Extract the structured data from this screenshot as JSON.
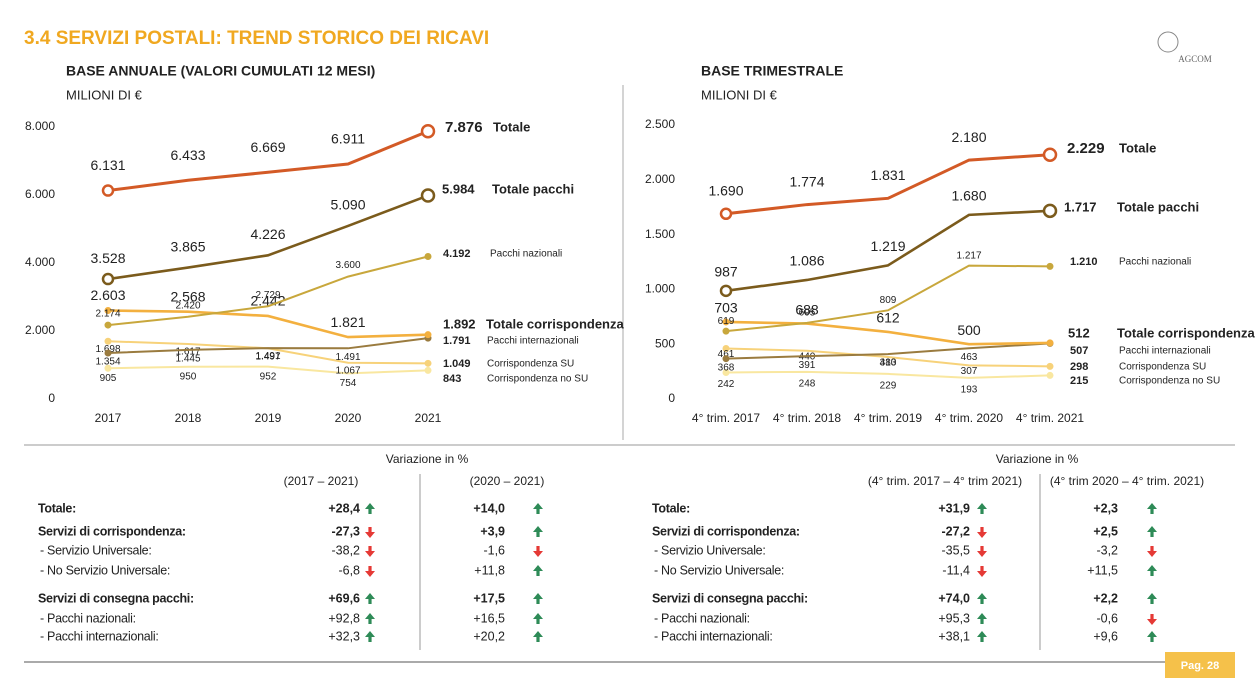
{
  "header": {
    "title": "3.4 SERVIZI POSTALI: TREND STORICO DEI RICAVI",
    "logo": "AGCOM"
  },
  "chart_data": [
    {
      "type": "line",
      "title": "BASE ANNUALE (VALORI CUMULATI 12 MESI)",
      "subtitle": "MILIONI DI €",
      "categories": [
        "2017",
        "2018",
        "2019",
        "2020",
        "2021"
      ],
      "ylim": [
        0,
        8000
      ],
      "yticks": [
        0,
        {
          "value": 2000,
          "label": "2.000"
        },
        {
          "value": 4000,
          "label": "4.000"
        },
        {
          "value": 6000,
          "label": "6.000"
        },
        {
          "value": 8000,
          "label": "8.000"
        }
      ],
      "series": [
        {
          "name": "Totale",
          "color": "#d35a26",
          "values": [
            6131,
            6433,
            6669,
            6911,
            7876
          ],
          "value_labels": [
            "6.131",
            "6.433",
            "6.669",
            "6.911",
            "7.876"
          ]
        },
        {
          "name": "Totale pacchi",
          "color": "#7b5b1c",
          "values": [
            3528,
            3865,
            4226,
            5090,
            5984
          ],
          "value_labels": [
            "3.528",
            "3.865",
            "4.226",
            "5.090",
            "5.984"
          ]
        },
        {
          "name": "Pacchi nazionali",
          "color": "#c8a73c",
          "values": [
            2174,
            2420,
            2729,
            3600,
            4192
          ],
          "value_labels": [
            "2.174",
            "2.420",
            "2.729",
            "3.600",
            "4.192"
          ]
        },
        {
          "name": "Totale corrispondenza",
          "color": "#f3b03f",
          "values": [
            2603,
            2568,
            2442,
            1821,
            1892
          ],
          "value_labels": [
            "2.603",
            "2.568",
            "2.442",
            "1.821",
            "1.892"
          ]
        },
        {
          "name": "Pacchi internazionali",
          "color": "#9a7b3f",
          "values": [
            1354,
            1445,
            1497,
            1491,
            1791
          ],
          "value_labels": [
            "1.354",
            "1.445",
            "1.497",
            "1.491",
            "1.791"
          ]
        },
        {
          "name": "Corrispondenza SU",
          "color": "#f7d27a",
          "values": [
            1698,
            1617,
            1491,
            1067,
            1049
          ],
          "value_labels": [
            "1.698",
            "1.617",
            "1.491",
            "1.067",
            "1.049"
          ]
        },
        {
          "name": "Corrispondenza no SU",
          "color": "#f9e7a0",
          "values": [
            905,
            950,
            952,
            754,
            843
          ],
          "value_labels": [
            "905",
            "950",
            "952",
            "754",
            "843"
          ]
        }
      ]
    },
    {
      "type": "line",
      "title": "BASE TRIMESTRALE",
      "subtitle": "MILIONI DI €",
      "categories": [
        "4° trim. 2017",
        "4° trim. 2018",
        "4° trim. 2019",
        "4° trim. 2020",
        "4° trim. 2021"
      ],
      "ylim": [
        0,
        2500
      ],
      "yticks": [
        0,
        500,
        {
          "value": 1000,
          "label": "1.000"
        },
        {
          "value": 1500,
          "label": "1.500"
        },
        {
          "value": 2000,
          "label": "2.000"
        },
        {
          "value": 2500,
          "label": "2.500"
        }
      ],
      "series": [
        {
          "name": "Totale",
          "color": "#d35a26",
          "values": [
            1690,
            1774,
            1831,
            2180,
            2229
          ],
          "value_labels": [
            "1.690",
            "1.774",
            "1.831",
            "2.180",
            "2.229"
          ]
        },
        {
          "name": "Totale pacchi",
          "color": "#7b5b1c",
          "values": [
            987,
            1086,
            1219,
            1680,
            1717
          ],
          "value_labels": [
            "987",
            "1.086",
            "1.219",
            "1.680",
            "1.717"
          ]
        },
        {
          "name": "Pacchi nazionali",
          "color": "#c8a73c",
          "values": [
            619,
            695,
            809,
            1217,
            1210
          ],
          "value_labels": [
            "619",
            "695",
            "809",
            "1.217",
            "1.210"
          ]
        },
        {
          "name": "Totale corrispondenza",
          "color": "#f3b03f",
          "values": [
            703,
            688,
            612,
            500,
            512
          ],
          "value_labels": [
            "703",
            "688",
            "612",
            "500",
            "512"
          ]
        },
        {
          "name": "Pacchi internazionali",
          "color": "#9a7b3f",
          "values": [
            368,
            391,
            410,
            463,
            507
          ],
          "value_labels": [
            "368",
            "391",
            "410",
            "463",
            "507"
          ]
        },
        {
          "name": "Corrispondenza SU",
          "color": "#f7d27a",
          "values": [
            461,
            440,
            383,
            307,
            298
          ],
          "value_labels": [
            "461",
            "440",
            "383",
            "307",
            "298"
          ]
        },
        {
          "name": "Corrispondenza no SU",
          "color": "#f9e7a0",
          "values": [
            242,
            248,
            229,
            193,
            215
          ],
          "value_labels": [
            "242",
            "248",
            "229",
            "193",
            "215"
          ]
        }
      ]
    }
  ],
  "tables": [
    {
      "title": "Variazione in %",
      "columns": [
        "(2017 – 2021)",
        "(2020 – 2021)"
      ],
      "rows": [
        [
          "Totale:",
          "+28,4",
          "+14,0"
        ],
        [
          "Servizi di corrispondenza:",
          "-27,3",
          "+3,9"
        ],
        [
          "- Servizio Universale:",
          "-38,2",
          "-1,6"
        ],
        [
          "- No Servizio Universale:",
          "-6,8",
          "+11,8"
        ],
        [
          "Servizi di consegna pacchi:",
          "+69,6",
          "+17,5"
        ],
        [
          "- Pacchi nazionali:",
          "+92,8",
          "+16,5"
        ],
        [
          "- Pacchi internazionali:",
          "+32,3",
          "+20,2"
        ]
      ]
    },
    {
      "title": "Variazione in %",
      "columns": [
        "(4° trim. 2017 – 4° trim 2021)",
        "(4° trim 2020 – 4° trim. 2021)"
      ],
      "rows": [
        [
          "Totale:",
          "+31,9",
          "+2,3"
        ],
        [
          "Servizi di corrispondenza:",
          "-27,2",
          "+2,5"
        ],
        [
          "- Servizio Universale:",
          "-35,5",
          "-3,2"
        ],
        [
          "- No Servizio Universale:",
          "-11,4",
          "+11,5"
        ],
        [
          "Servizi di consegna pacchi:",
          "+74,0",
          "+2,2"
        ],
        [
          "- Pacchi nazionali:",
          "+95,3",
          "-0,6"
        ],
        [
          "- Pacchi internazionali:",
          "+38,1",
          "+9,6"
        ]
      ]
    }
  ],
  "footer": {
    "page": "Pag. 28"
  }
}
